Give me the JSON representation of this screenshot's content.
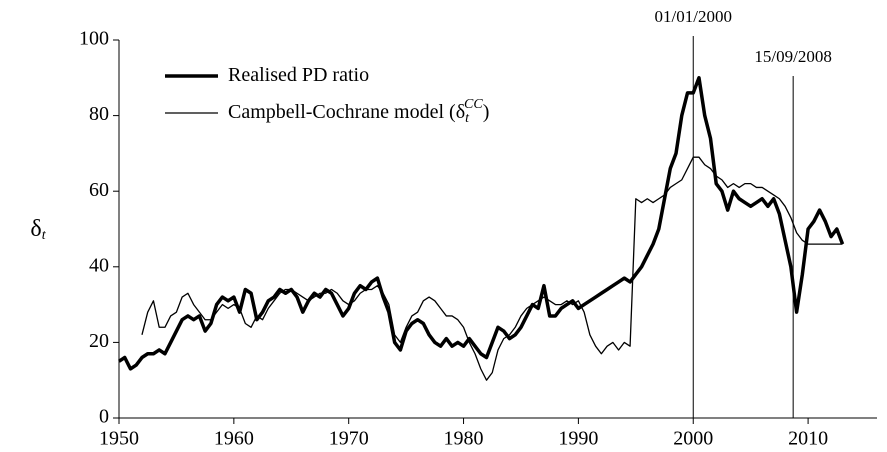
{
  "chart_data": {
    "type": "line",
    "ylabel_symbol": "δ",
    "ylabel_subscript": "t",
    "x": [
      1950,
      1950.5,
      1951,
      1951.5,
      1952,
      1952.5,
      1953,
      1953.5,
      1954,
      1954.5,
      1955,
      1955.5,
      1956,
      1956.5,
      1957,
      1957.5,
      1958,
      1958.5,
      1959,
      1959.5,
      1960,
      1960.5,
      1961,
      1961.5,
      1962,
      1962.5,
      1963,
      1963.5,
      1964,
      1964.5,
      1965,
      1965.5,
      1966,
      1966.5,
      1967,
      1967.5,
      1968,
      1968.5,
      1969,
      1969.5,
      1970,
      1970.5,
      1971,
      1971.5,
      1972,
      1972.5,
      1973,
      1973.5,
      1974,
      1974.5,
      1975,
      1975.5,
      1976,
      1976.5,
      1977,
      1977.5,
      1978,
      1978.5,
      1979,
      1979.5,
      1980,
      1980.5,
      1981,
      1981.5,
      1982,
      1982.5,
      1983,
      1983.5,
      1984,
      1984.5,
      1985,
      1985.5,
      1986,
      1986.5,
      1987,
      1987.5,
      1988,
      1988.5,
      1989,
      1989.5,
      1990,
      1990.5,
      1991,
      1991.5,
      1992,
      1992.5,
      1993,
      1993.5,
      1994,
      1994.5,
      1995,
      1995.5,
      1996,
      1996.5,
      1997,
      1997.5,
      1998,
      1998.5,
      1999,
      1999.5,
      2000,
      2000.5,
      2001,
      2001.5,
      2002,
      2002.5,
      2003,
      2003.5,
      2004,
      2004.5,
      2005,
      2005.5,
      2006,
      2006.5,
      2007,
      2007.5,
      2008,
      2008.5,
      2009,
      2009.5,
      2010,
      2010.5,
      2011,
      2011.5,
      2012,
      2012.5,
      2013
    ],
    "series": [
      {
        "name": "Realised PD ratio",
        "color": "#000000",
        "width": 3.5,
        "values": [
          15,
          16,
          13,
          14,
          16,
          17,
          17,
          18,
          17,
          20,
          23,
          26,
          27,
          26,
          27,
          23,
          25,
          30,
          32,
          31,
          32,
          28,
          34,
          33,
          26,
          28,
          31,
          32,
          34,
          33,
          34,
          32,
          28,
          31,
          33,
          32,
          34,
          33,
          30,
          27,
          29,
          33,
          35,
          34,
          36,
          37,
          32,
          28,
          20,
          18,
          23,
          25,
          26,
          25,
          22,
          20,
          19,
          21,
          19,
          20,
          19,
          21,
          19,
          17,
          16,
          20,
          24,
          23,
          21,
          22,
          24,
          27,
          30,
          29,
          35,
          27,
          27,
          29,
          30,
          31,
          29,
          30,
          31,
          32,
          33,
          34,
          35,
          36,
          37,
          36,
          38,
          40,
          43,
          46,
          50,
          58,
          66,
          70,
          80,
          86,
          86,
          90,
          80,
          74,
          62,
          60,
          55,
          60,
          58,
          57,
          56,
          57,
          58,
          56,
          58,
          54,
          47,
          40,
          28,
          38,
          50,
          52,
          55,
          52,
          48,
          50,
          46
        ]
      },
      {
        "name": "Campbell-Cochrane model (δ",
        "name_subscript": "t",
        "name_superscript": "CC",
        "name_end": ")",
        "color": "#000000",
        "width": 1.3,
        "values": [
          null,
          null,
          null,
          null,
          22,
          28,
          31,
          24,
          24,
          27,
          28,
          32,
          33,
          30,
          28,
          26,
          26,
          28,
          30,
          29,
          30,
          29,
          25,
          24,
          27,
          26,
          29,
          31,
          33,
          34,
          34,
          33,
          32,
          31,
          32,
          33,
          33,
          34,
          33,
          31,
          30,
          31,
          33,
          34,
          34,
          35,
          33,
          30,
          22,
          20,
          24,
          27,
          28,
          31,
          32,
          31,
          29,
          27,
          27,
          26,
          24,
          20,
          17,
          13,
          10,
          12,
          18,
          21,
          22,
          24,
          27,
          29,
          30,
          31,
          32,
          31,
          30,
          30,
          31,
          30,
          31,
          28,
          22,
          19,
          17,
          19,
          20,
          18,
          20,
          19,
          58,
          57,
          58,
          57,
          58,
          59,
          61,
          62,
          63,
          66,
          69,
          69,
          67,
          66,
          64,
          63,
          61,
          62,
          61,
          62,
          62,
          61,
          61,
          60,
          59,
          58,
          56,
          53,
          49,
          47,
          46,
          46,
          46,
          46,
          46,
          46,
          46
        ]
      }
    ],
    "annotations": [
      {
        "x": 2000,
        "label": "01/01/2000"
      },
      {
        "x": 2008.7,
        "label": "15/09/2008"
      }
    ],
    "xlim": [
      1950,
      2016
    ],
    "xticks": [
      1950,
      1960,
      1970,
      1980,
      1990,
      2000,
      2010
    ],
    "ylim": [
      0,
      100
    ],
    "yticks": [
      0,
      20,
      40,
      60,
      80,
      100
    ],
    "grid": false,
    "legend": "upper left"
  }
}
